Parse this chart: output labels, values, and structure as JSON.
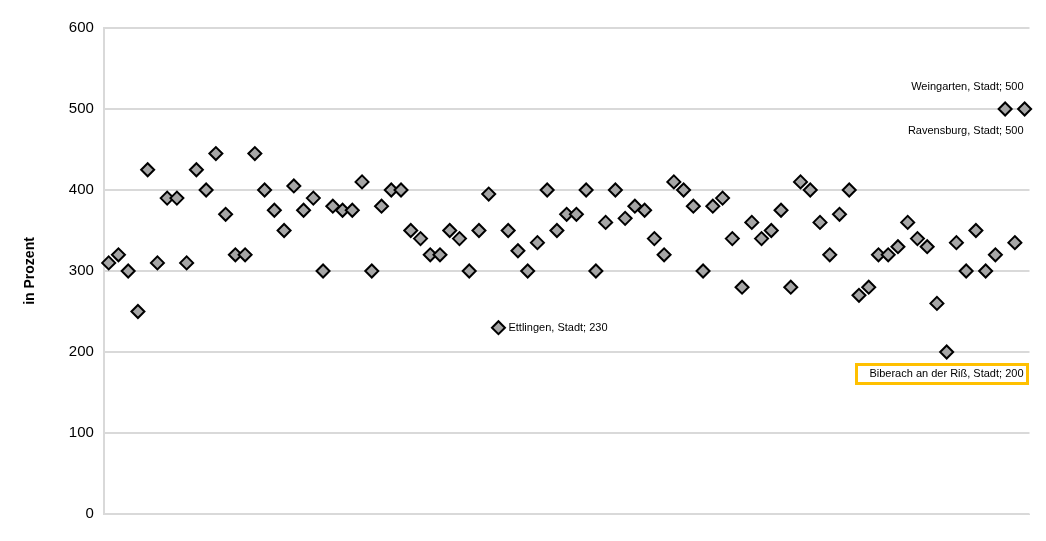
{
  "chart_data": {
    "type": "scatter",
    "ylabel": "in Prozent",
    "categories": [
      null,
      null,
      null,
      null,
      null,
      null,
      null,
      null,
      null,
      null,
      null,
      null,
      null,
      null,
      null,
      null,
      null,
      null,
      null,
      null,
      null,
      null,
      null,
      null,
      null,
      null,
      null,
      null,
      null,
      null,
      null,
      null,
      null,
      null,
      null,
      null,
      null,
      null,
      null,
      null,
      null,
      null,
      null,
      null,
      null,
      null,
      null,
      null,
      null,
      null,
      null,
      null,
      null,
      null,
      null,
      null,
      null,
      null,
      null,
      null,
      null,
      null,
      null,
      null,
      null,
      null,
      null,
      null,
      null,
      null,
      null,
      null,
      null,
      null,
      null,
      null,
      null,
      null,
      null,
      null,
      null,
      null,
      null,
      null,
      null,
      null,
      null,
      null,
      null,
      null,
      null,
      null,
      null,
      null,
      null
    ],
    "series": [
      {
        "color": "#a6a6a6",
        "values": [
          310,
          320,
          300,
          250,
          425,
          310,
          390,
          390,
          310,
          425,
          400,
          445,
          370,
          320,
          320,
          445,
          400,
          375,
          350,
          405,
          375,
          390,
          300,
          380,
          375,
          375,
          410,
          300,
          380,
          400,
          400,
          350,
          340,
          320,
          320,
          350,
          340,
          300,
          350,
          395,
          230,
          350,
          325,
          300,
          335,
          400,
          350,
          370,
          370,
          400,
          300,
          360,
          400,
          365,
          380,
          375,
          340,
          320,
          410,
          400,
          380,
          300,
          380,
          390,
          340,
          280,
          360,
          340,
          350,
          375,
          280,
          410,
          400,
          360,
          320,
          370,
          400,
          270,
          280,
          320,
          320,
          330,
          360,
          340,
          330,
          260,
          200,
          335,
          300,
          350,
          300,
          320,
          500,
          335,
          500
        ],
        "value_labels": [
          null,
          null,
          null,
          null,
          null,
          null,
          null,
          null,
          null,
          null,
          null,
          null,
          null,
          null,
          null,
          null,
          null,
          null,
          null,
          null,
          null,
          null,
          null,
          null,
          null,
          null,
          null,
          null,
          null,
          null,
          null,
          null,
          null,
          null,
          null,
          null,
          null,
          null,
          null,
          null,
          "Ettlingen, Stadt; 230",
          null,
          null,
          null,
          null,
          null,
          null,
          null,
          null,
          null,
          null,
          null,
          null,
          null,
          null,
          null,
          null,
          null,
          null,
          null,
          null,
          null,
          null,
          null,
          null,
          null,
          null,
          null,
          null,
          null,
          null,
          null,
          null,
          null,
          null,
          null,
          null,
          null,
          null,
          null,
          null,
          null,
          null,
          null,
          null,
          null,
          "Biberach an der Riß, Stadt; 200",
          null,
          null,
          null,
          null,
          null,
          "Weingarten, Stadt; 500",
          null,
          "Ravensburg, Stadt; 500"
        ]
      }
    ],
    "ylim": [
      0,
      600
    ],
    "yticks": [
      0,
      100,
      200,
      300,
      400,
      500,
      600
    ],
    "grid": "y",
    "legend": false,
    "marker": "diamond",
    "tick_labels": "y"
  }
}
